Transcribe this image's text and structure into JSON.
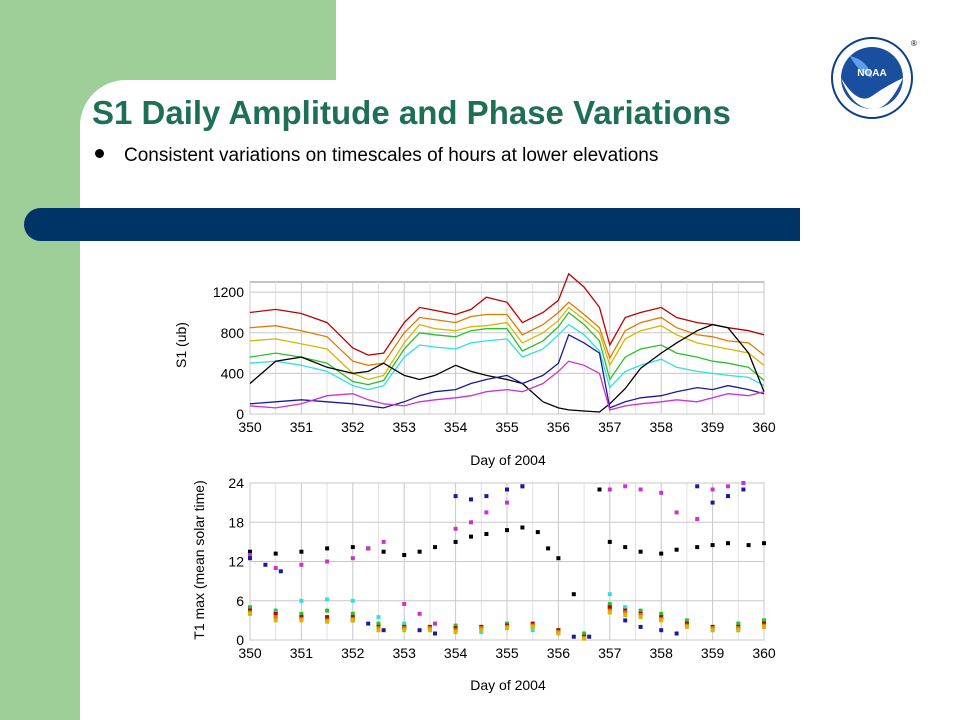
{
  "slide": {
    "title": "S1  Daily Amplitude and Phase Variations",
    "bullet": "Consistent variations on timescales of hours at lower elevations",
    "logo_text": "NOAA",
    "logo_registered": "®"
  },
  "colors": {
    "green_block": "#9ecf98",
    "title": "#1f6f57",
    "navy_bar": "#003366",
    "series": [
      "#c00000",
      "#e07a00",
      "#d4b800",
      "#2bbf2b",
      "#2ee0e0",
      "#000000",
      "#1a1aa0",
      "#cc33cc"
    ]
  },
  "chart_data": [
    {
      "type": "line",
      "xlabel": "Day of 2004",
      "ylabel": "S1 (ub)",
      "xlim": [
        350,
        360
      ],
      "ylim": [
        0,
        1300
      ],
      "xticks": [
        350,
        351,
        352,
        353,
        354,
        355,
        356,
        357,
        358,
        359,
        360
      ],
      "yticks": [
        0,
        400,
        800,
        1200
      ],
      "grid": true,
      "series": [
        {
          "color": "#c00000",
          "x": [
            350,
            350.5,
            351,
            351.5,
            352,
            352.3,
            352.6,
            353,
            353.3,
            353.6,
            354,
            354.3,
            354.6,
            355,
            355.3,
            355.7,
            356,
            356.2,
            356.5,
            356.8,
            357,
            357.3,
            357.6,
            358,
            358.3,
            358.7,
            359,
            359.3,
            359.7,
            360
          ],
          "y": [
            1000,
            1030,
            990,
            900,
            650,
            580,
            600,
            900,
            1050,
            1020,
            980,
            1030,
            1150,
            1100,
            900,
            1000,
            1120,
            1380,
            1250,
            1050,
            680,
            950,
            1000,
            1050,
            950,
            900,
            880,
            850,
            820,
            780
          ]
        },
        {
          "color": "#e07a00",
          "x": [
            350,
            350.5,
            351,
            351.5,
            352,
            352.3,
            352.6,
            353,
            353.3,
            353.6,
            354,
            354.3,
            354.6,
            355,
            355.3,
            355.7,
            356,
            356.2,
            356.5,
            356.8,
            357,
            357.3,
            357.6,
            358,
            358.3,
            358.7,
            359,
            359.3,
            359.7,
            360
          ],
          "y": [
            850,
            870,
            820,
            760,
            520,
            480,
            500,
            800,
            950,
            930,
            900,
            960,
            980,
            980,
            780,
            880,
            1000,
            1100,
            980,
            850,
            550,
            820,
            900,
            950,
            850,
            780,
            760,
            720,
            700,
            580
          ]
        },
        {
          "color": "#d4b800",
          "x": [
            350,
            350.5,
            351,
            351.5,
            352,
            352.3,
            352.6,
            353,
            353.3,
            353.6,
            354,
            354.3,
            354.6,
            355,
            355.3,
            355.7,
            356,
            356.2,
            356.5,
            356.8,
            357,
            357.3,
            357.6,
            358,
            358.3,
            358.7,
            359,
            359.3,
            359.7,
            360
          ],
          "y": [
            720,
            740,
            690,
            640,
            400,
            340,
            380,
            700,
            880,
            840,
            820,
            860,
            870,
            900,
            700,
            800,
            920,
            1050,
            930,
            800,
            480,
            740,
            820,
            870,
            780,
            700,
            670,
            640,
            600,
            480
          ]
        },
        {
          "color": "#2bbf2b",
          "x": [
            350,
            350.5,
            351,
            351.5,
            352,
            352.3,
            352.6,
            353,
            353.3,
            353.6,
            354,
            354.3,
            354.6,
            355,
            355.3,
            355.7,
            356,
            356.2,
            356.5,
            356.8,
            357,
            357.3,
            357.6,
            358,
            358.3,
            358.7,
            359,
            359.3,
            359.7,
            360
          ],
          "y": [
            560,
            600,
            560,
            500,
            320,
            290,
            330,
            640,
            800,
            780,
            760,
            820,
            840,
            840,
            620,
            720,
            860,
            1000,
            880,
            720,
            340,
            560,
            640,
            680,
            600,
            560,
            520,
            500,
            460,
            330
          ]
        },
        {
          "color": "#2ee0e0",
          "x": [
            350,
            350.5,
            351,
            351.5,
            352,
            352.3,
            352.6,
            353,
            353.3,
            353.6,
            354,
            354.3,
            354.6,
            355,
            355.3,
            355.7,
            356,
            356.2,
            356.5,
            356.8,
            357,
            357.3,
            357.6,
            358,
            358.3,
            358.7,
            359,
            359.3,
            359.7,
            360
          ],
          "y": [
            500,
            520,
            480,
            420,
            280,
            240,
            280,
            560,
            680,
            660,
            640,
            700,
            720,
            740,
            560,
            640,
            780,
            880,
            780,
            620,
            260,
            420,
            480,
            540,
            460,
            420,
            400,
            380,
            360,
            280
          ]
        },
        {
          "color": "#000000",
          "x": [
            350,
            350.5,
            351,
            351.5,
            352,
            352.3,
            352.6,
            353,
            353.3,
            353.6,
            354,
            354.3,
            354.6,
            355,
            355.3,
            355.7,
            356,
            356.2,
            356.5,
            356.8,
            357,
            357.3,
            357.6,
            358,
            358.3,
            358.7,
            359,
            359.3,
            359.7,
            360
          ],
          "y": [
            300,
            520,
            560,
            460,
            400,
            420,
            500,
            380,
            340,
            380,
            480,
            420,
            380,
            340,
            300,
            120,
            60,
            40,
            30,
            20,
            100,
            250,
            450,
            600,
            700,
            820,
            880,
            850,
            600,
            220
          ]
        },
        {
          "color": "#1a1aa0",
          "x": [
            350,
            350.5,
            351,
            351.5,
            352,
            352.3,
            352.6,
            353,
            353.3,
            353.6,
            354,
            354.3,
            354.6,
            355,
            355.3,
            355.7,
            356,
            356.2,
            356.5,
            356.8,
            357,
            357.3,
            357.6,
            358,
            358.3,
            358.7,
            359,
            359.3,
            359.7,
            360
          ],
          "y": [
            100,
            120,
            140,
            120,
            100,
            80,
            60,
            120,
            180,
            220,
            240,
            300,
            340,
            380,
            300,
            380,
            500,
            780,
            700,
            600,
            60,
            120,
            160,
            180,
            220,
            260,
            240,
            280,
            240,
            200
          ]
        },
        {
          "color": "#cc33cc",
          "x": [
            350,
            350.5,
            351,
            351.5,
            352,
            352.3,
            352.6,
            353,
            353.3,
            353.6,
            354,
            354.3,
            354.6,
            355,
            355.3,
            355.7,
            356,
            356.2,
            356.5,
            356.8,
            357,
            357.3,
            357.6,
            358,
            358.3,
            358.7,
            359,
            359.3,
            359.7,
            360
          ],
          "y": [
            80,
            60,
            100,
            180,
            200,
            140,
            100,
            80,
            120,
            140,
            160,
            180,
            220,
            240,
            220,
            300,
            420,
            520,
            480,
            400,
            40,
            80,
            100,
            120,
            140,
            120,
            160,
            200,
            180,
            220
          ]
        }
      ]
    },
    {
      "type": "scatter",
      "xlabel": "Day of 2004",
      "ylabel": "T1 max (mean solar time)",
      "xlim": [
        350,
        360
      ],
      "ylim": [
        0,
        24
      ],
      "xticks": [
        350,
        351,
        352,
        353,
        354,
        355,
        356,
        357,
        358,
        359,
        360
      ],
      "yticks": [
        0,
        6,
        12,
        18,
        24
      ],
      "grid": true,
      "series": [
        {
          "color": "#000000",
          "x": [
            350,
            350.5,
            351,
            351.5,
            352,
            352.3,
            352.6,
            353,
            353.3,
            353.6,
            354,
            354.3,
            354.6,
            355,
            355.3,
            355.6,
            355.8,
            356,
            356.3,
            356.8,
            357,
            357.3,
            357.6,
            358,
            358.3,
            358.7,
            359,
            359.3,
            359.7,
            360
          ],
          "y": [
            13.5,
            13.2,
            13.5,
            14.0,
            14.2,
            14.0,
            13.5,
            13.0,
            13.5,
            14.2,
            15.0,
            15.8,
            16.2,
            16.8,
            17.2,
            16.5,
            14.0,
            12.5,
            7.0,
            23.0,
            15.0,
            14.2,
            13.5,
            13.2,
            13.8,
            14.2,
            14.5,
            14.8,
            14.5,
            14.8
          ]
        },
        {
          "color": "#cc33cc",
          "x": [
            350,
            350.5,
            351,
            351.5,
            352,
            352.3,
            352.6,
            353,
            353.3,
            353.6,
            354,
            354.3,
            354.6,
            355,
            355.3,
            357,
            357.3,
            357.6,
            358,
            358.3,
            358.7,
            359,
            359.3,
            359.6
          ],
          "y": [
            13.0,
            11.0,
            11.5,
            12.0,
            12.5,
            14.0,
            15.0,
            5.5,
            4.0,
            2.5,
            17.0,
            18.0,
            19.5,
            21.0,
            23.5,
            23.0,
            23.5,
            23.0,
            22.5,
            19.5,
            18.5,
            23.0,
            23.5,
            24.0
          ]
        },
        {
          "color": "#1a1aa0",
          "x": [
            350,
            350.3,
            350.6,
            351,
            351.5,
            352,
            352.3,
            352.6,
            353,
            353.3,
            353.6,
            354,
            354.3,
            354.6,
            355,
            355.3,
            356,
            356.3,
            356.6,
            357,
            357.3,
            357.6,
            358,
            358.3,
            358.7,
            359,
            359.3,
            359.6,
            360
          ],
          "y": [
            12.5,
            11.5,
            10.5,
            3.5,
            3.0,
            3.0,
            2.5,
            1.5,
            2.0,
            1.5,
            1.0,
            22.0,
            21.5,
            22.0,
            23.0,
            23.5,
            1.0,
            0.5,
            0.5,
            5.0,
            3.0,
            2.0,
            1.5,
            1.0,
            23.5,
            21.0,
            22.0,
            23.0,
            2.0
          ]
        },
        {
          "color": "#2bbf2b",
          "x": [
            350,
            350.5,
            351,
            351.5,
            352,
            352.5,
            353,
            353.5,
            354,
            354.5,
            355,
            355.5,
            356,
            356.5,
            357,
            357.3,
            357.6,
            358,
            358.5,
            359,
            359.5,
            360
          ],
          "y": [
            5.0,
            4.5,
            4.0,
            4.5,
            4.0,
            2.5,
            2.0,
            2.0,
            2.2,
            2.0,
            2.5,
            2.0,
            1.5,
            1.0,
            5.5,
            5.0,
            4.5,
            4.0,
            3.0,
            2.0,
            2.5,
            3.0
          ]
        },
        {
          "color": "#2ee0e0",
          "x": [
            350,
            350.5,
            351,
            351.5,
            352,
            352.5,
            353,
            353.5,
            354,
            354.5,
            355,
            355.5,
            356,
            356.5,
            357,
            357.3,
            357.6,
            358,
            358.5,
            359,
            359.5,
            360
          ],
          "y": [
            4.0,
            4.2,
            6.0,
            6.2,
            6.0,
            3.5,
            2.5,
            1.5,
            1.5,
            1.2,
            2.0,
            1.5,
            1.0,
            0.5,
            7.0,
            5.0,
            4.0,
            3.5,
            2.5,
            1.5,
            1.5,
            2.0
          ]
        },
        {
          "color": "#c00000",
          "x": [
            350,
            350.5,
            351,
            351.5,
            352,
            352.5,
            353,
            353.5,
            354,
            354.5,
            355,
            355.5,
            356,
            356.5,
            357,
            357.3,
            357.6,
            358,
            358.5,
            359,
            359.5,
            360
          ],
          "y": [
            4.5,
            4.0,
            3.5,
            3.5,
            3.5,
            2.0,
            2.0,
            2.0,
            1.8,
            2.0,
            2.2,
            2.5,
            1.5,
            0.5,
            5.0,
            4.5,
            4.0,
            3.5,
            2.5,
            2.0,
            2.0,
            2.5
          ]
        },
        {
          "color": "#e07a00",
          "x": [
            350,
            350.5,
            351,
            351.5,
            352,
            352.5,
            353,
            353.5,
            354,
            354.5,
            355,
            355.5,
            356,
            356.5,
            357,
            357.3,
            357.6,
            358,
            358.5,
            359,
            359.5,
            360
          ],
          "y": [
            4.2,
            3.5,
            3.2,
            3.0,
            3.2,
            1.8,
            1.8,
            1.8,
            1.5,
            1.8,
            2.0,
            2.2,
            1.2,
            0.3,
            4.5,
            4.2,
            3.8,
            3.2,
            2.2,
            1.8,
            1.8,
            2.2
          ]
        },
        {
          "color": "#d4b800",
          "x": [
            350,
            350.5,
            351,
            351.5,
            352,
            352.5,
            353,
            353.5,
            354,
            354.5,
            355,
            355.5,
            356,
            356.5,
            357,
            357.3,
            357.6,
            358,
            358.5,
            359,
            359.5,
            360
          ],
          "y": [
            4.0,
            3.0,
            3.0,
            2.8,
            3.0,
            1.5,
            1.5,
            1.5,
            1.2,
            1.5,
            1.8,
            2.0,
            1.0,
            0.2,
            4.2,
            3.8,
            3.5,
            3.0,
            2.0,
            1.5,
            1.5,
            2.0
          ]
        }
      ]
    }
  ]
}
